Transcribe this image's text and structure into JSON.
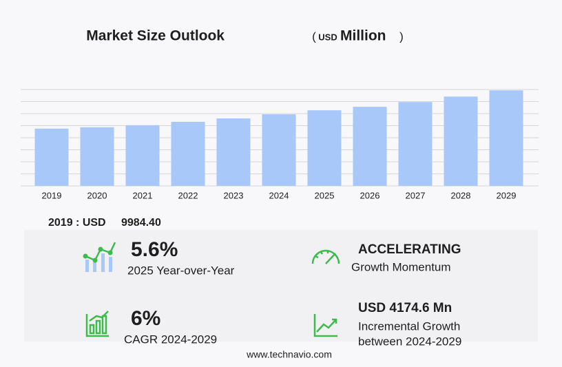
{
  "chart_data": {
    "type": "bar",
    "title": "Market Size Outlook",
    "unit_open": "(",
    "currency_label": "USD",
    "unit_label": "Million",
    "unit_close": ")",
    "categories": [
      "2019",
      "2020",
      "2021",
      "2022",
      "2023",
      "2024",
      "2025",
      "2026",
      "2027",
      "2028",
      "2029"
    ],
    "values": [
      9984.4,
      10220,
      10580,
      11170,
      11760,
      12480,
      13180,
      13790,
      14620,
      15570,
      16655
    ],
    "color": "#a8c8fa",
    "ylim": [
      0,
      16800
    ],
    "yticks": [
      0,
      2100,
      4200,
      6300,
      8400,
      10500,
      12600,
      14700,
      16800
    ],
    "grid": true
  },
  "summary": {
    "base_label": "2019 : USD",
    "base_value": "9984.40",
    "yoy_value": "5.6%",
    "yoy_label": "2025 Year-over-Year",
    "momentum_value": "ACCELERATING",
    "momentum_label": "Growth Momentum",
    "cagr_value": "6%",
    "cagr_label": "CAGR 2024-2029",
    "incremental_value": "USD 4174.6 Mn",
    "incremental_label_1": "Incremental Growth",
    "incremental_label_2": "between 2024-2029",
    "footer": "www.technavio.com"
  }
}
